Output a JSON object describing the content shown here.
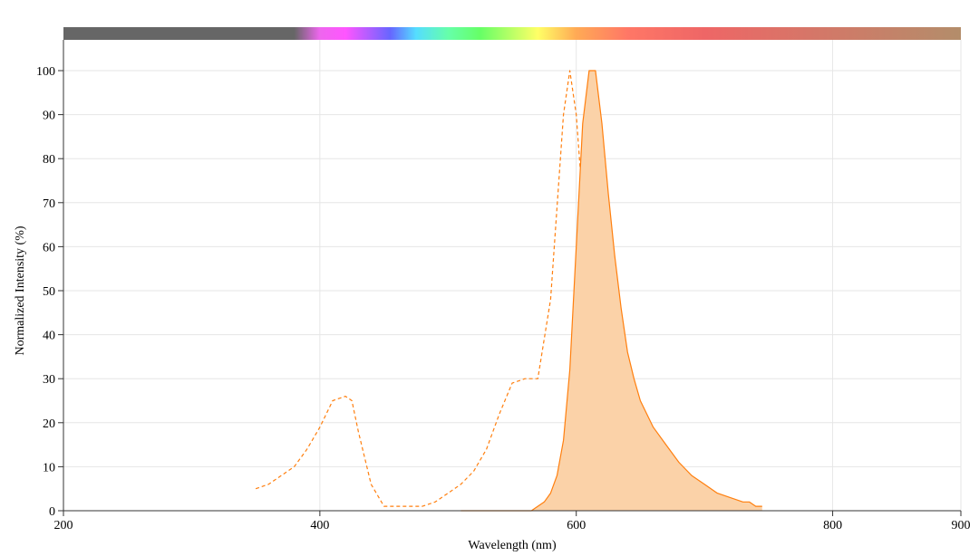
{
  "chart_data": {
    "type": "area",
    "xlabel": "Wavelength (nm)",
    "ylabel": "Normalized Intensity (%)",
    "xlim": [
      200,
      900
    ],
    "ylim": [
      0,
      100
    ],
    "x_ticks": [
      200,
      400,
      600,
      800,
      900
    ],
    "y_ticks": [
      0,
      10,
      20,
      30,
      40,
      50,
      60,
      70,
      80,
      90,
      100
    ],
    "grid": true,
    "legend": "none",
    "spectrum_bar": {
      "stops": [
        {
          "wavelength": 200,
          "color": "#666666"
        },
        {
          "wavelength": 380,
          "color": "#666666"
        },
        {
          "wavelength": 400,
          "color": "#ee66ee"
        },
        {
          "wavelength": 420,
          "color": "#ff55ff"
        },
        {
          "wavelength": 455,
          "color": "#6666ff"
        },
        {
          "wavelength": 475,
          "color": "#55ddff"
        },
        {
          "wavelength": 500,
          "color": "#66ffaa"
        },
        {
          "wavelength": 525,
          "color": "#66ff66"
        },
        {
          "wavelength": 570,
          "color": "#ffff66"
        },
        {
          "wavelength": 600,
          "color": "#ffaa55"
        },
        {
          "wavelength": 640,
          "color": "#ff7766"
        },
        {
          "wavelength": 700,
          "color": "#ee6666"
        },
        {
          "wavelength": 900,
          "color": "#b38d6a"
        }
      ]
    },
    "series": [
      {
        "style": "dashed",
        "color": "#ff7f0e",
        "fill": false,
        "x": [
          350,
          360,
          370,
          380,
          390,
          400,
          410,
          420,
          425,
          430,
          440,
          450,
          460,
          470,
          480,
          490,
          500,
          510,
          520,
          530,
          540,
          550,
          560,
          570,
          580,
          590,
          595,
          600,
          605,
          610,
          620,
          630,
          640
        ],
        "y": [
          5,
          6,
          8,
          10,
          14,
          19,
          25,
          26,
          25,
          18,
          6,
          1,
          1,
          1,
          1,
          2,
          4,
          6,
          9,
          14,
          22,
          29,
          30,
          30,
          48,
          90,
          100,
          90,
          70,
          45,
          15,
          4,
          1
        ]
      },
      {
        "style": "solid",
        "color": "#ff7f0e",
        "fill": true,
        "fill_color": "#fbd2a8",
        "x": [
          510,
          520,
          530,
          540,
          550,
          560,
          565,
          570,
          575,
          580,
          585,
          590,
          595,
          600,
          605,
          610,
          615,
          620,
          625,
          630,
          635,
          640,
          645,
          650,
          660,
          670,
          680,
          690,
          700,
          710,
          720,
          730,
          735,
          740,
          745
        ],
        "y": [
          0,
          0,
          0,
          0,
          0,
          0,
          0,
          1,
          2,
          4,
          8,
          16,
          32,
          60,
          88,
          100,
          100,
          88,
          72,
          58,
          46,
          36,
          30,
          25,
          19,
          15,
          11,
          8,
          6,
          4,
          3,
          2,
          2,
          1,
          1
        ]
      }
    ]
  }
}
